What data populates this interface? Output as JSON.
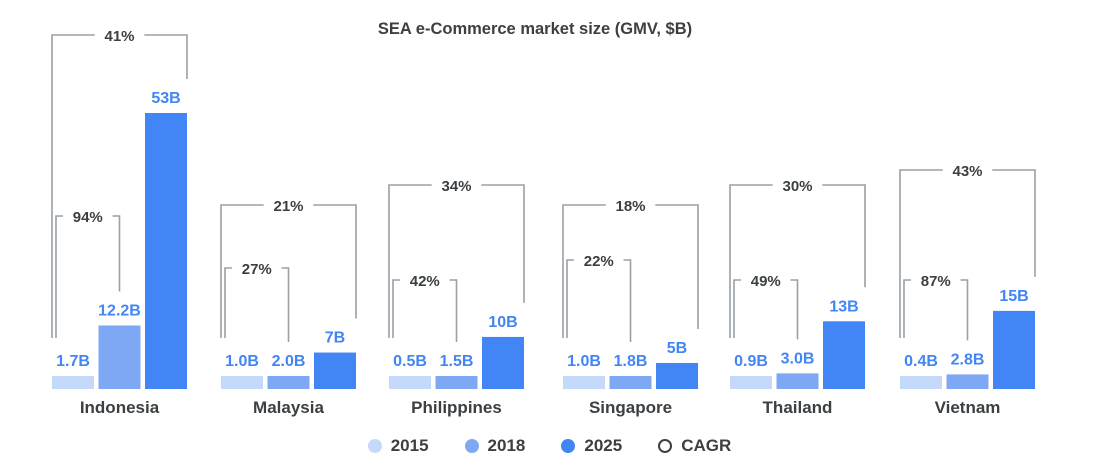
{
  "chart_data": {
    "type": "bar",
    "title": "SEA e-Commerce market size (GMV, $B)",
    "categories": [
      "Indonesia",
      "Malaysia",
      "Philippines",
      "Singapore",
      "Thailand",
      "Vietnam"
    ],
    "series": [
      {
        "name": "2015",
        "color": "#c5d9fb",
        "values": [
          1.7,
          1.0,
          0.5,
          1.0,
          0.9,
          0.4
        ],
        "labels": [
          "1.7B",
          "1.0B",
          "0.5B",
          "1.0B",
          "0.9B",
          "0.4B"
        ]
      },
      {
        "name": "2018",
        "color": "#7ea8f4",
        "values": [
          12.2,
          2.0,
          1.5,
          1.8,
          3.0,
          2.8
        ],
        "labels": [
          "12.2B",
          "2.0B",
          "1.5B",
          "1.8B",
          "3.0B",
          "2.8B"
        ]
      },
      {
        "name": "2025",
        "color": "#4285f4",
        "values": [
          53,
          7,
          10,
          5,
          13,
          15
        ],
        "labels": [
          "53B",
          "7B",
          "10B",
          "5B",
          "13B",
          "15B"
        ]
      }
    ],
    "cagr_2015_2018": [
      "94%",
      "27%",
      "42%",
      "22%",
      "49%",
      "87%"
    ],
    "cagr_2015_2025": [
      "41%",
      "21%",
      "34%",
      "18%",
      "30%",
      "43%"
    ],
    "legend": [
      {
        "label": "2015",
        "color": "#c5d9fb",
        "style": "filled"
      },
      {
        "label": "2018",
        "color": "#7ea8f4",
        "style": "filled"
      },
      {
        "label": "2025",
        "color": "#4285f4",
        "style": "filled"
      },
      {
        "label": "CAGR",
        "color": "#3c4043",
        "style": "outline"
      }
    ],
    "legend_position": "bottom",
    "grid": false
  }
}
